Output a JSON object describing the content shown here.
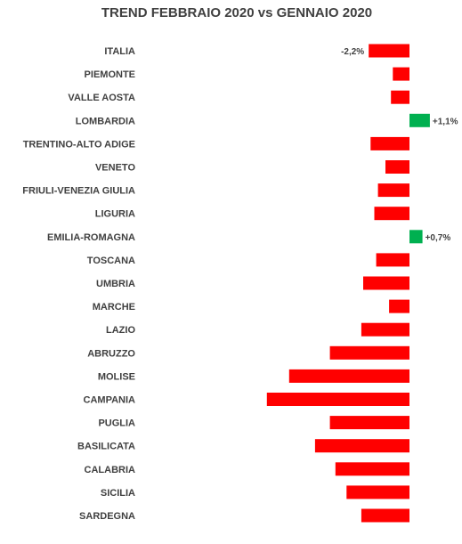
{
  "chart_data": {
    "type": "bar",
    "orientation": "horizontal",
    "title": "TREND FEBBRAIO 2020 vs GENNAIO 2020",
    "xlabel": "",
    "ylabel": "",
    "unit": "%",
    "grid": false,
    "legend": "none",
    "categories": [
      "ITALIA",
      "PIEMONTE",
      "VALLE AOSTA",
      "LOMBARDIA",
      "TRENTINO-ALTO ADIGE",
      "VENETO",
      "FRIULI-VENEZIA GIULIA",
      "LIGURIA",
      "EMILIA-ROMAGNA",
      "TOSCANA",
      "UMBRIA",
      "MARCHE",
      "LAZIO",
      "ABRUZZO",
      "MOLISE",
      "CAMPANIA",
      "PUGLIA",
      "BASILICATA",
      "CALABRIA",
      "SICILIA",
      "SARDEGNA"
    ],
    "values": [
      -2.2,
      -0.9,
      -1.0,
      1.1,
      -2.1,
      -1.3,
      -1.7,
      -1.9,
      0.7,
      -1.8,
      -2.5,
      -1.1,
      -2.6,
      -4.3,
      -6.5,
      -7.7,
      -4.3,
      -5.1,
      -4.0,
      -3.4,
      -2.6
    ],
    "data_labels": [
      {
        "index": 0,
        "text": "-2,2%"
      },
      {
        "index": 3,
        "text": "+1,1%"
      },
      {
        "index": 8,
        "text": "+0,7%"
      }
    ],
    "colors": {
      "negative": "#ff0000",
      "positive": "#00b050"
    }
  }
}
